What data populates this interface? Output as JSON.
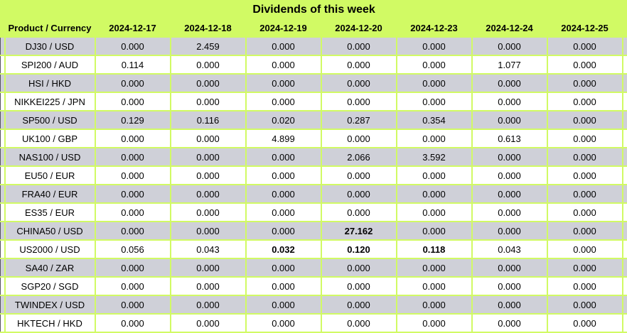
{
  "table": {
    "title": "Dividends of this week",
    "product_header": "Product / Currency",
    "date_headers": [
      "2024-12-17",
      "2024-12-18",
      "2024-12-19",
      "2024-12-20",
      "2024-12-23",
      "2024-12-24",
      "2024-12-25"
    ],
    "rows": [
      {
        "product": "DJ30 / USD",
        "values": [
          "0.000",
          "2.459",
          "0.000",
          "0.000",
          "0.000",
          "0.000",
          "0.000"
        ],
        "bold": []
      },
      {
        "product": "SPI200 / AUD",
        "values": [
          "0.114",
          "0.000",
          "0.000",
          "0.000",
          "0.000",
          "1.077",
          "0.000"
        ],
        "bold": []
      },
      {
        "product": "HSI / HKD",
        "values": [
          "0.000",
          "0.000",
          "0.000",
          "0.000",
          "0.000",
          "0.000",
          "0.000"
        ],
        "bold": []
      },
      {
        "product": "NIKKEI225 / JPN",
        "values": [
          "0.000",
          "0.000",
          "0.000",
          "0.000",
          "0.000",
          "0.000",
          "0.000"
        ],
        "bold": []
      },
      {
        "product": "SP500 / USD",
        "values": [
          "0.129",
          "0.116",
          "0.020",
          "0.287",
          "0.354",
          "0.000",
          "0.000"
        ],
        "bold": []
      },
      {
        "product": "UK100 / GBP",
        "values": [
          "0.000",
          "0.000",
          "4.899",
          "0.000",
          "0.000",
          "0.613",
          "0.000"
        ],
        "bold": []
      },
      {
        "product": "NAS100 / USD",
        "values": [
          "0.000",
          "0.000",
          "0.000",
          "2.066",
          "3.592",
          "0.000",
          "0.000"
        ],
        "bold": []
      },
      {
        "product": "EU50 / EUR",
        "values": [
          "0.000",
          "0.000",
          "0.000",
          "0.000",
          "0.000",
          "0.000",
          "0.000"
        ],
        "bold": []
      },
      {
        "product": "FRA40 / EUR",
        "values": [
          "0.000",
          "0.000",
          "0.000",
          "0.000",
          "0.000",
          "0.000",
          "0.000"
        ],
        "bold": []
      },
      {
        "product": "ES35 / EUR",
        "values": [
          "0.000",
          "0.000",
          "0.000",
          "0.000",
          "0.000",
          "0.000",
          "0.000"
        ],
        "bold": []
      },
      {
        "product": "CHINA50 / USD",
        "values": [
          "0.000",
          "0.000",
          "0.000",
          "27.162",
          "0.000",
          "0.000",
          "0.000"
        ],
        "bold": [
          3
        ]
      },
      {
        "product": "US2000 / USD",
        "values": [
          "0.056",
          "0.043",
          "0.032",
          "0.120",
          "0.118",
          "0.043",
          "0.000"
        ],
        "bold": [
          2,
          3,
          4
        ]
      },
      {
        "product": "SA40 / ZAR",
        "values": [
          "0.000",
          "0.000",
          "0.000",
          "0.000",
          "0.000",
          "0.000",
          "0.000"
        ],
        "bold": []
      },
      {
        "product": "SGP20 / SGD",
        "values": [
          "0.000",
          "0.000",
          "0.000",
          "0.000",
          "0.000",
          "0.000",
          "0.000"
        ],
        "bold": []
      },
      {
        "product": "TWINDEX / USD",
        "values": [
          "0.000",
          "0.000",
          "0.000",
          "0.000",
          "0.000",
          "0.000",
          "0.000"
        ],
        "bold": []
      },
      {
        "product": "HKTECH / HKD",
        "values": [
          "0.000",
          "0.000",
          "0.000",
          "0.000",
          "0.000",
          "0.000",
          "0.000"
        ],
        "bold": []
      }
    ]
  },
  "colors": {
    "accent_green": "#d1fa64",
    "row_stripe_gray": "#cfd0d8",
    "row_stripe_white": "#ffffff"
  }
}
